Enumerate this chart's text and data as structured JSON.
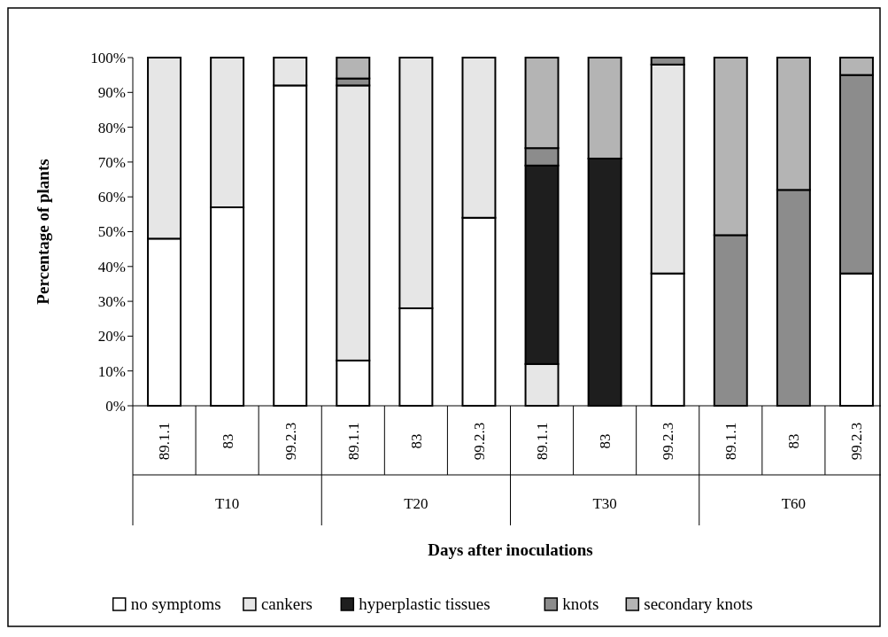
{
  "chart_data": {
    "type": "bar",
    "stacked": true,
    "xlabel": "Days after inoculations",
    "ylabel": "Percentage of plants",
    "categories": [
      "89.1.1",
      "83",
      "99.2.3",
      "89.1.1",
      "83",
      "99.2.3",
      "89.1.1",
      "83",
      "99.2.3",
      "89.1.1",
      "83",
      "99.2.3"
    ],
    "annotations": [
      "T10",
      "T20",
      "T30",
      "T60"
    ],
    "series": [
      {
        "name": "no symptoms",
        "color": "#ffffff",
        "values": [
          48,
          57,
          92,
          13,
          28,
          54,
          0,
          0,
          38,
          0,
          0,
          38
        ]
      },
      {
        "name": "cankers",
        "color": "#e6e6e6",
        "values": [
          52,
          43,
          8,
          79,
          72,
          46,
          12,
          0,
          60,
          0,
          0,
          0
        ]
      },
      {
        "name": "hyperplastic tissues",
        "color": "#1e1e1e",
        "values": [
          0,
          0,
          0,
          0,
          0,
          0,
          57,
          71,
          0,
          0,
          0,
          0
        ]
      },
      {
        "name": "knots",
        "color": "#8c8c8c",
        "values": [
          0,
          0,
          0,
          2,
          0,
          0,
          5,
          0,
          2,
          49,
          62,
          57
        ]
      },
      {
        "name": "secondary knots",
        "color": "#b4b4b4",
        "values": [
          0,
          0,
          0,
          6,
          0,
          0,
          26,
          29,
          0,
          51,
          38,
          5
        ]
      }
    ],
    "ylim": [
      0,
      100
    ],
    "yticks": [
      {
        "value": 0,
        "label": "0%"
      },
      {
        "value": 10,
        "label": "10%"
      },
      {
        "value": 20,
        "label": "20%"
      },
      {
        "value": 30,
        "label": "30%"
      },
      {
        "value": 40,
        "label": "40%"
      },
      {
        "value": 50,
        "label": "50%"
      },
      {
        "value": 60,
        "label": "60%"
      },
      {
        "value": 70,
        "label": "70%"
      },
      {
        "value": 80,
        "label": "80%"
      },
      {
        "value": 90,
        "label": "90%"
      },
      {
        "value": 100,
        "label": "100%"
      }
    ],
    "legend": "bottom"
  }
}
